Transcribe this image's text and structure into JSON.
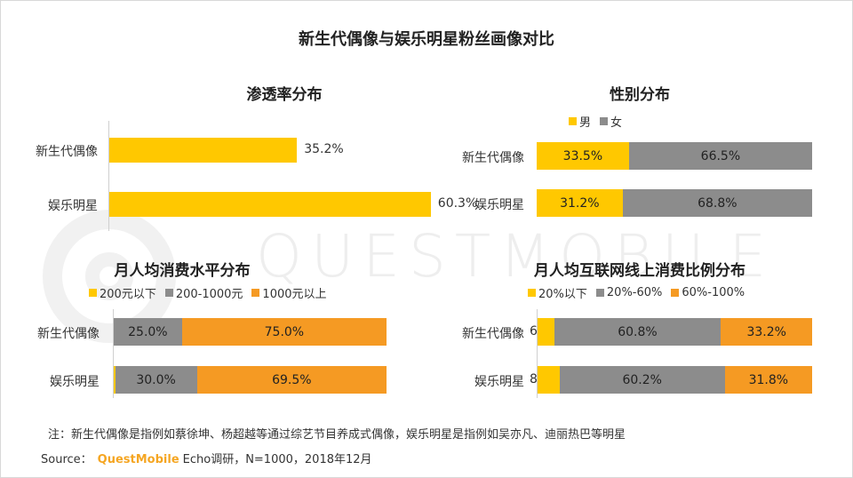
{
  "title": "新生代偶像与娱乐明星粉丝画像对比",
  "watermark": "QUESTMOBILE",
  "colors": {
    "yellow": "#ffc800",
    "gray": "#8c8c8c",
    "orange": "#f59a23"
  },
  "chart_data": [
    {
      "type": "bar",
      "orientation": "horizontal",
      "title": "渗透率分布",
      "categories": [
        "新生代偶像",
        "娱乐明星"
      ],
      "series": [
        {
          "values": [
            35.2,
            60.3
          ],
          "labels": [
            "35.2%",
            "60.3%"
          ],
          "color": "#ffc800"
        }
      ],
      "xlim": [
        0,
        100
      ],
      "grid": false
    },
    {
      "type": "bar",
      "orientation": "horizontal",
      "stacked": true,
      "title": "性别分布",
      "categories": [
        "新生代偶像",
        "娱乐明星"
      ],
      "legend_position": "top",
      "series": [
        {
          "name": "男",
          "values": [
            33.5,
            31.2
          ],
          "labels": [
            "33.5%",
            "31.2%"
          ],
          "color": "#ffc800"
        },
        {
          "name": "女",
          "values": [
            66.5,
            68.8
          ],
          "labels": [
            "66.5%",
            "68.8%"
          ],
          "color": "#8c8c8c"
        }
      ],
      "xlim": [
        0,
        100
      ]
    },
    {
      "type": "bar",
      "orientation": "horizontal",
      "stacked": true,
      "title": "月人均消费水平分布",
      "categories": [
        "新生代偶像",
        "娱乐明星"
      ],
      "legend_position": "top",
      "series": [
        {
          "name": "200元以下",
          "values": [
            0.0,
            0.5
          ],
          "labels": [
            "",
            ""
          ],
          "color": "#ffc800"
        },
        {
          "name": "200-1000元",
          "values": [
            25.0,
            30.0
          ],
          "labels": [
            "25.0%",
            "30.0%"
          ],
          "color": "#8c8c8c"
        },
        {
          "name": "1000元以上",
          "values": [
            75.0,
            69.5
          ],
          "labels": [
            "75.0%",
            "69.5%"
          ],
          "color": "#f59a23"
        }
      ],
      "xlim": [
        0,
        100
      ]
    },
    {
      "type": "bar",
      "orientation": "horizontal",
      "stacked": true,
      "title": "月人均互联网线上消费比例分布",
      "categories": [
        "新生代偶像",
        "娱乐明星"
      ],
      "legend_position": "top",
      "series": [
        {
          "name": "20%以下",
          "values": [
            6.0,
            8.0
          ],
          "labels": [
            "6.0%",
            "8.0%"
          ],
          "color": "#ffc800"
        },
        {
          "name": "20%-60%",
          "values": [
            60.8,
            60.2
          ],
          "labels": [
            "60.8%",
            "60.2%"
          ],
          "color": "#8c8c8c"
        },
        {
          "name": "60%-100%",
          "values": [
            33.2,
            31.8
          ],
          "labels": [
            "33.2%",
            "31.8%"
          ],
          "color": "#f59a23"
        }
      ],
      "xlim": [
        0,
        100
      ]
    }
  ],
  "footer": {
    "note": "注：新生代偶像是指例如蔡徐坤、杨超越等通过综艺节目养成式偶像，娱乐明星是指例如吴亦凡、迪丽热巴等明星",
    "source_prefix": "Source：",
    "source_brand": "QuestMobile",
    "source_suffix": "Echo调研，N=1000，2018年12月"
  }
}
